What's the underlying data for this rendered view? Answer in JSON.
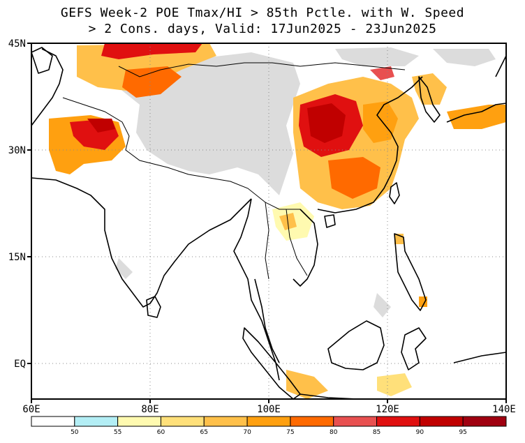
{
  "title": {
    "line1": "GEFS Week-2 POE Tmax/HI > 85th Pctle. with W. Speed",
    "line2": "> 2 Cons. days, Valid: 17Jun2025 - 23Jun2025"
  },
  "map": {
    "lon_range": [
      60,
      140
    ],
    "lat_range": [
      -6,
      45
    ],
    "x_ticks": [
      {
        "lon": 60,
        "label": "60E"
      },
      {
        "lon": 80,
        "label": "80E"
      },
      {
        "lon": 100,
        "label": "100E"
      },
      {
        "lon": 120,
        "label": "120E"
      },
      {
        "lon": 140,
        "label": "140E"
      }
    ],
    "y_ticks": [
      {
        "lat": 45,
        "label": "45N"
      },
      {
        "lat": 30,
        "label": "30N"
      },
      {
        "lat": 15,
        "label": "15N"
      },
      {
        "lat": 0,
        "label": "EQ"
      }
    ],
    "gridlines": "dotted",
    "masked_color": "#dcdcdc",
    "land_outline_color": "#000000"
  },
  "colorbar": {
    "bins": [
      {
        "color": "#ffffff"
      },
      {
        "color": "#b3eef5"
      },
      {
        "color": "#fffab0"
      },
      {
        "color": "#ffe07a"
      },
      {
        "color": "#ffc04a"
      },
      {
        "color": "#ffa010"
      },
      {
        "color": "#ff6a00"
      },
      {
        "color": "#e85050"
      },
      {
        "color": "#e01010"
      },
      {
        "color": "#c00000"
      },
      {
        "color": "#a00010"
      }
    ],
    "labels": [
      "50",
      "55",
      "60",
      "65",
      "70",
      "75",
      "80",
      "85",
      "90",
      "95"
    ]
  }
}
